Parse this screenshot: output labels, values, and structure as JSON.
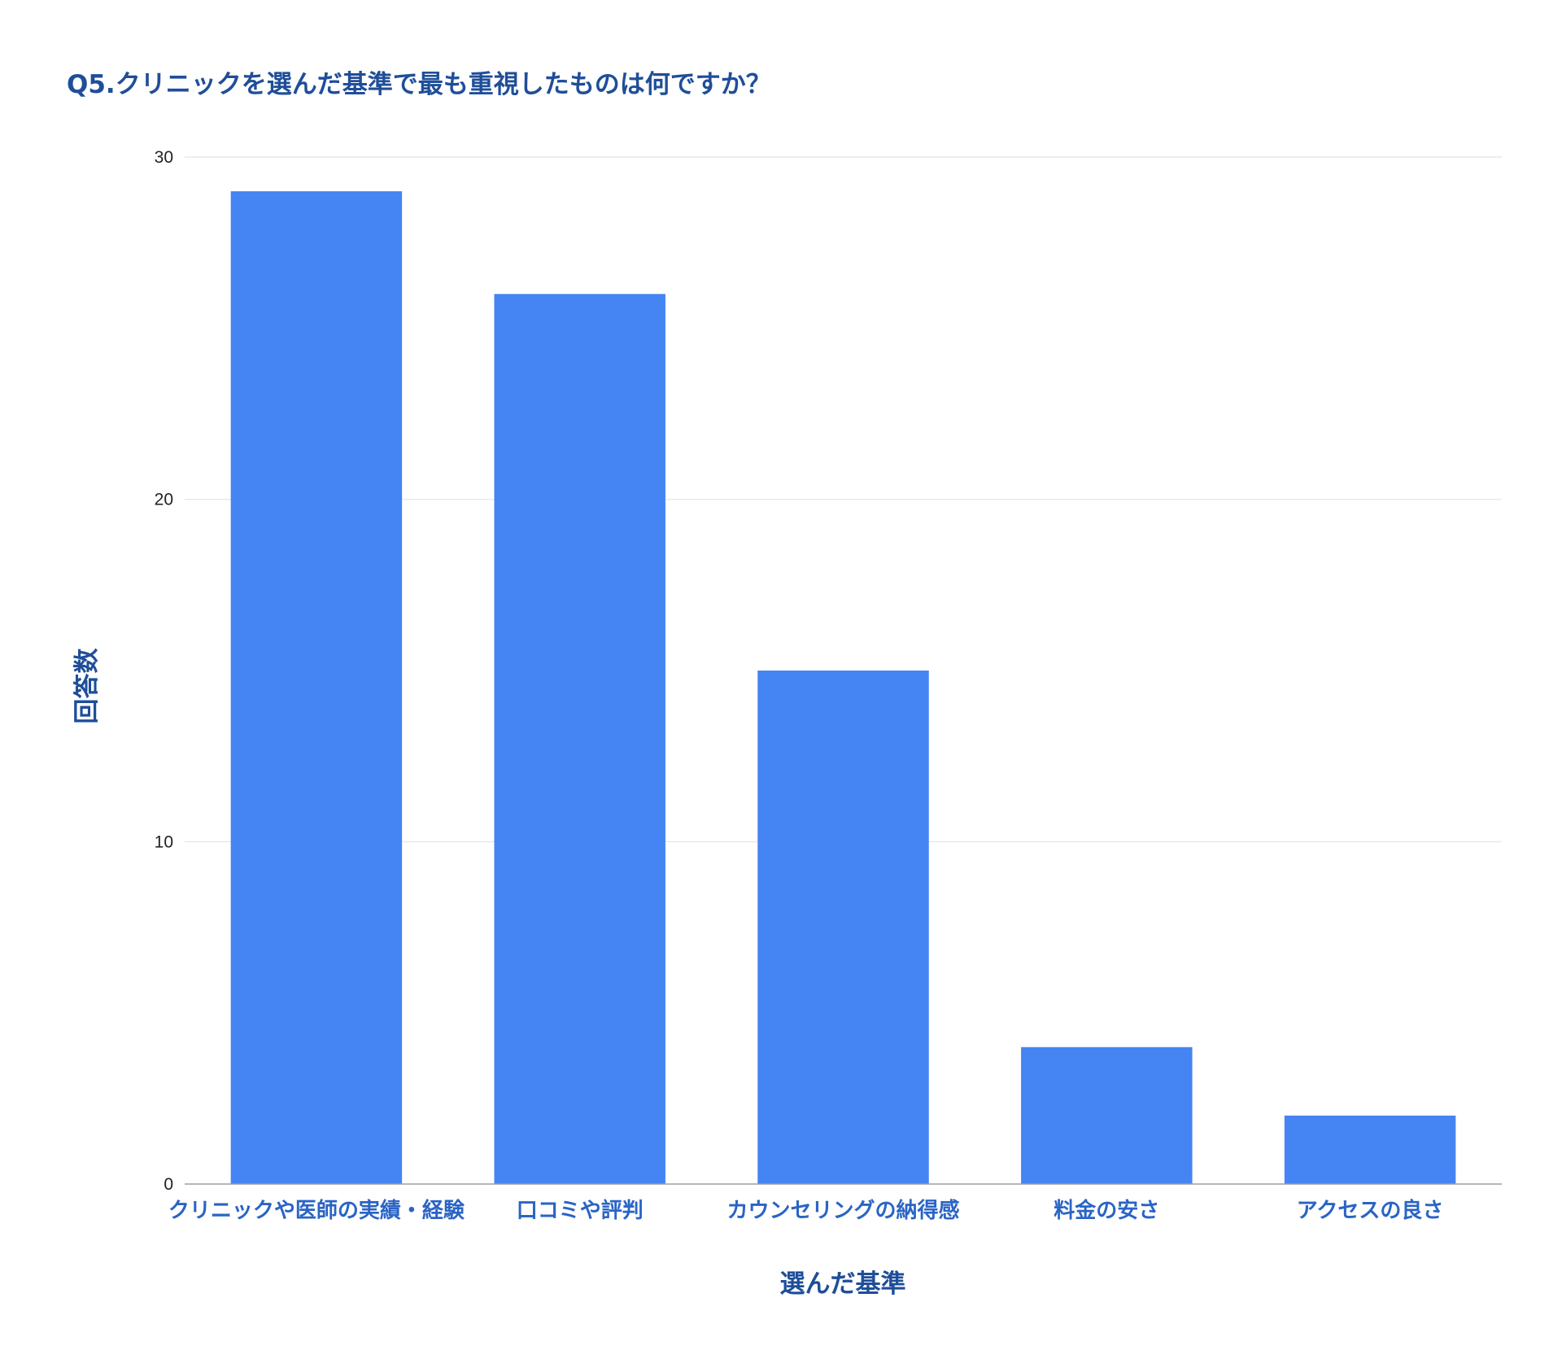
{
  "chart_data": {
    "type": "bar",
    "title": "Q5.クリニックを選んだ基準で最も重視したものは何ですか？",
    "xlabel": "選んだ基準",
    "ylabel": "回答数",
    "categories": [
      "クリニックや医師の実績・経験",
      "口コミや評判",
      "カウンセリングの納得感",
      "料金の安さ",
      "アクセスの良さ"
    ],
    "values": [
      29,
      26,
      15,
      4,
      2
    ],
    "ylim": [
      0,
      30
    ],
    "yticks": [
      0,
      10,
      20,
      30
    ],
    "grid": true,
    "legend": "none",
    "colors": {
      "bar": "#4584f3",
      "title": "#1f4e99",
      "category_label": "#2a64c5",
      "gridline": "#e3e3e3",
      "axis": "#9e9e9e"
    }
  }
}
